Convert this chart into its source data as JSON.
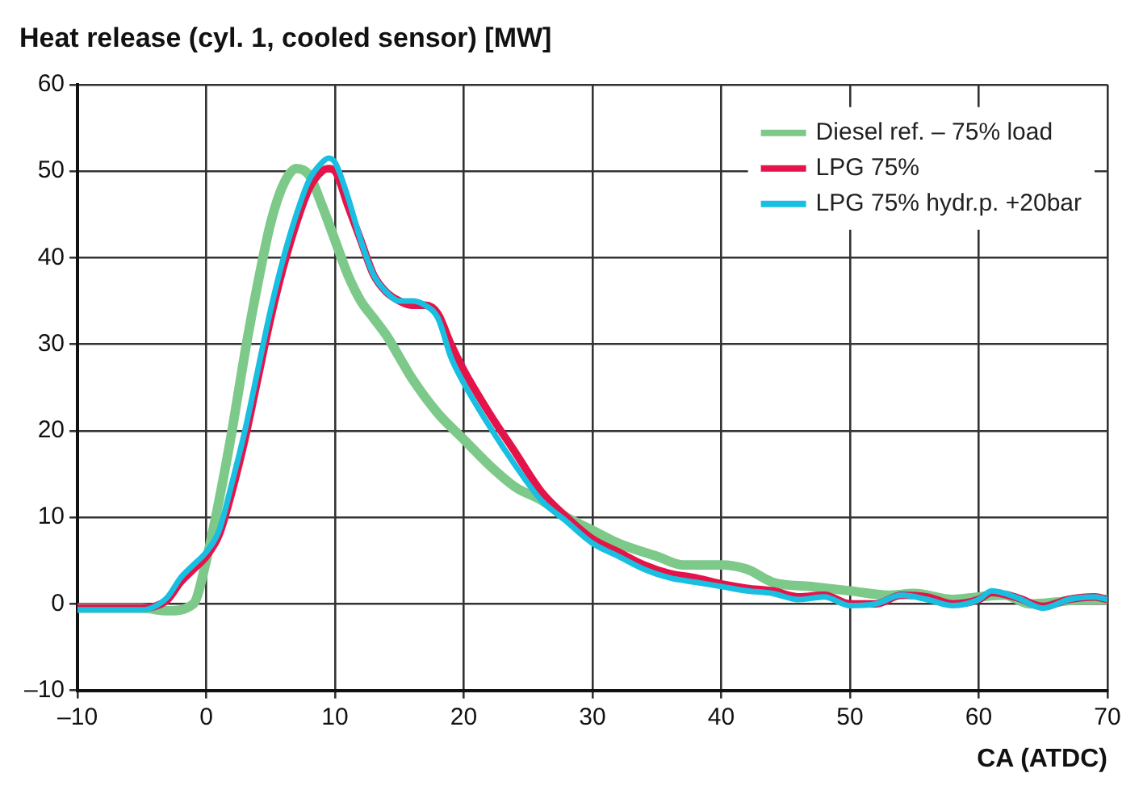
{
  "chart_data": {
    "type": "line",
    "title": "Heat release (cyl. 1, cooled sensor) [MW]",
    "xlabel": "CA (ATDC)",
    "xlim": [
      -10,
      70
    ],
    "xticks": [
      {
        "value": -10,
        "label": "–10"
      },
      0,
      10,
      20,
      30,
      40,
      50,
      60,
      70
    ],
    "ylim": [
      -10,
      60
    ],
    "yticks": [
      {
        "value": -10,
        "label": "–10"
      },
      0,
      10,
      20,
      30,
      40,
      50,
      60
    ],
    "grid": true,
    "legend": "top right",
    "marker": "none",
    "line_style": "solid",
    "series": [
      {
        "name": "Diesel ref. – 75% load",
        "color": "#7dc98a",
        "x": [
          -10,
          -5,
          -3,
          -1,
          0,
          1,
          2,
          3,
          4,
          5,
          6,
          7,
          8,
          9,
          10,
          11,
          12,
          13,
          14,
          15,
          16,
          18,
          20,
          22,
          24,
          26,
          28,
          30,
          32,
          35,
          37,
          40,
          42,
          44,
          47,
          50,
          53,
          55,
          58,
          60,
          62,
          64,
          66,
          68,
          70
        ],
        "values": [
          -0.5,
          -0.5,
          -0.8,
          0,
          5,
          12,
          20,
          29,
          37,
          44,
          48.5,
          50.3,
          49.5,
          46,
          42,
          38,
          35,
          33,
          31,
          28.5,
          26,
          22,
          19,
          16,
          13.5,
          12,
          10,
          8.5,
          7,
          5.5,
          4.5,
          4.5,
          4,
          2.5,
          2,
          1.5,
          1,
          1.2,
          0.5,
          0.8,
          1,
          0,
          0.2,
          0.5,
          0.5
        ]
      },
      {
        "name": "LPG 75%",
        "color": "#e4144a",
        "x": [
          -10,
          -5,
          -4,
          -3,
          -2,
          -1,
          0,
          1,
          2,
          3,
          4,
          5,
          6,
          7,
          8,
          9,
          9.5,
          10,
          11,
          12,
          13,
          14,
          15,
          16,
          17,
          18,
          19,
          20,
          22,
          24,
          26,
          28,
          30,
          32,
          34,
          36,
          38,
          40,
          42,
          44,
          46,
          48,
          50,
          52,
          54,
          56,
          58,
          60,
          61,
          63,
          65,
          67,
          69,
          70
        ],
        "values": [
          -0.5,
          -0.5,
          -0.3,
          0.5,
          2.5,
          4,
          5.5,
          8,
          13,
          19,
          26,
          33,
          39,
          44,
          48,
          50,
          50.3,
          50,
          46,
          42,
          38,
          36,
          35,
          34.5,
          34.5,
          33.5,
          30,
          27,
          22,
          17.5,
          13,
          10,
          7.5,
          6,
          4.5,
          3.5,
          3,
          2.3,
          1.8,
          1.5,
          0.8,
          1,
          0,
          0,
          1,
          0.8,
          0,
          0.5,
          1.3,
          0.7,
          -0.3,
          0.5,
          0.8,
          0.5
        ]
      },
      {
        "name": "LPG 75% hydr.p. +20bar",
        "color": "#19bfe0",
        "x": [
          -10,
          -5,
          -4,
          -3,
          -2,
          -1,
          0,
          1,
          2,
          3,
          4,
          5,
          6,
          7,
          8,
          9,
          9.5,
          10,
          11,
          12,
          13,
          14,
          15,
          16,
          17,
          18,
          19,
          20,
          22,
          24,
          26,
          28,
          30,
          32,
          34,
          36,
          38,
          40,
          42,
          44,
          46,
          48,
          50,
          52,
          54,
          56,
          58,
          60,
          61,
          63,
          65,
          67,
          69,
          70
        ],
        "values": [
          -0.7,
          -0.7,
          -0.3,
          0.8,
          3,
          4.5,
          6,
          8.5,
          14,
          20,
          27,
          34,
          40,
          45,
          49,
          51,
          51.5,
          51,
          47,
          42,
          38,
          36,
          35,
          35,
          34.5,
          33,
          28.5,
          25.5,
          20.5,
          16,
          12,
          9.5,
          7,
          5.5,
          4,
          3,
          2.5,
          2,
          1.5,
          1.2,
          0.5,
          0.8,
          -0.2,
          0,
          1,
          0.5,
          -0.2,
          0.5,
          1.5,
          0.7,
          -0.5,
          0.5,
          0.8,
          0.5
        ]
      }
    ]
  }
}
